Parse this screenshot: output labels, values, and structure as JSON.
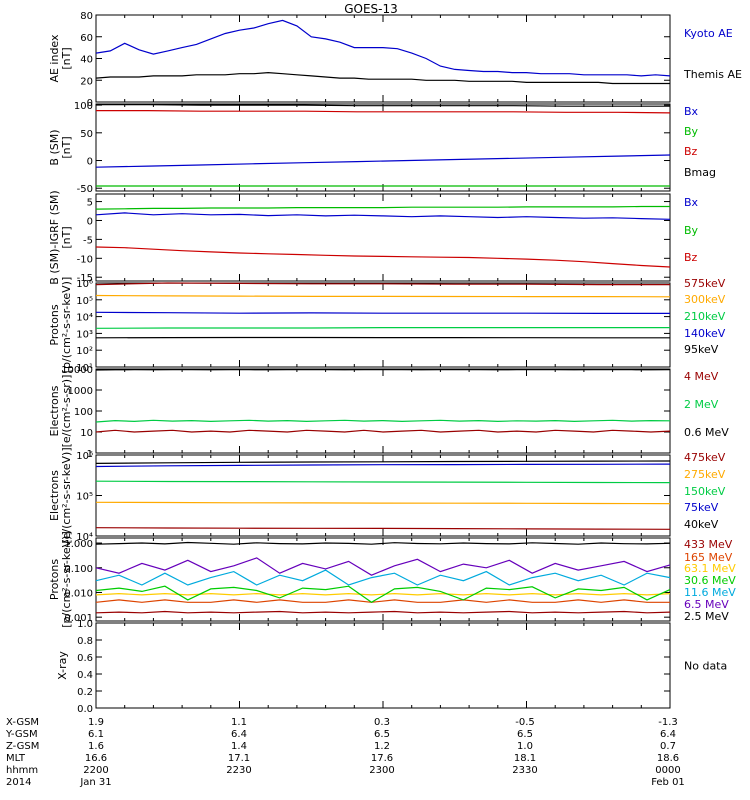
{
  "title": "GOES-13",
  "chart_data": [
    {
      "type": "line",
      "ylabel": [
        "AE index",
        "[nT]"
      ],
      "ylim": [
        0,
        80
      ],
      "ticks": [
        0,
        20,
        40,
        60,
        80
      ],
      "tick_labels": [
        "0",
        "20",
        "40",
        "60",
        "80"
      ],
      "series": [
        {
          "name": "Kyoto AE",
          "color": "#0000cc",
          "values": [
            45,
            47,
            54,
            48,
            44,
            47,
            50,
            53,
            58,
            63,
            66,
            68,
            72,
            75,
            70,
            60,
            58,
            55,
            50,
            50,
            50,
            49,
            45,
            40,
            33,
            30,
            29,
            28,
            28,
            27,
            27,
            26,
            26,
            26,
            25,
            25,
            25,
            25,
            24,
            25,
            24
          ]
        },
        {
          "name": "Themis AE",
          "color": "#000000",
          "values": [
            22,
            23,
            23,
            23,
            24,
            24,
            24,
            25,
            25,
            25,
            26,
            26,
            27,
            26,
            25,
            24,
            23,
            22,
            22,
            21,
            21,
            21,
            21,
            20,
            20,
            20,
            19,
            19,
            19,
            19,
            18,
            18,
            18,
            18,
            18,
            18,
            17,
            17,
            17,
            17,
            17
          ]
        }
      ]
    },
    {
      "type": "line",
      "ylabel": [
        "B (SM)",
        "[nT]"
      ],
      "ylim": [
        -55,
        102
      ],
      "ticks": [
        -50,
        0,
        50,
        100
      ],
      "tick_labels": [
        "-50",
        "0",
        "50",
        "100"
      ],
      "series": [
        {
          "name": "Bx",
          "color": "#0000cc",
          "values": [
            -12,
            -10,
            -8,
            -6,
            -4,
            -2,
            0,
            2,
            4,
            6,
            8,
            10
          ]
        },
        {
          "name": "By",
          "color": "#00bb00",
          "values": [
            -46,
            -46,
            -46,
            -46,
            -46,
            -46,
            -46,
            -46,
            -46,
            -46,
            -46,
            -46
          ]
        },
        {
          "name": "Bz",
          "color": "#cc0000",
          "values": [
            90,
            90,
            89,
            89,
            89,
            88,
            88,
            88,
            88,
            87,
            87,
            86
          ]
        },
        {
          "name": "Bmag",
          "color": "#000000",
          "values": [
            101,
            101,
            100,
            100,
            100,
            99,
            99,
            99,
            99,
            98,
            98,
            98
          ]
        }
      ]
    },
    {
      "type": "line",
      "ylabel": [
        "B (SM)-IGRF (SM)",
        "[nT]"
      ],
      "ylim": [
        -16,
        7
      ],
      "ticks": [
        -15,
        -10,
        -5,
        0,
        5
      ],
      "tick_labels": [
        "-15",
        "-10",
        "-5",
        "0",
        "5"
      ],
      "series": [
        {
          "name": "Bx",
          "color": "#0000cc",
          "values": [
            1.5,
            2,
            1.5,
            1.8,
            1.5,
            1.6,
            1.3,
            1.5,
            1.2,
            1.4,
            1.2,
            1.0,
            1.2,
            1.0,
            0.8,
            1.0,
            0.8,
            0.6,
            0.7,
            0.5,
            0.3
          ]
        },
        {
          "name": "By",
          "color": "#00bb00",
          "values": [
            3.0,
            3.1,
            3.2,
            3.2,
            3.3,
            3.3,
            3.3,
            3.4,
            3.4,
            3.4,
            3.4,
            3.5,
            3.5,
            3.5,
            3.5,
            3.6,
            3.6,
            3.6,
            3.6,
            3.7,
            3.7
          ]
        },
        {
          "name": "Bz",
          "color": "#cc0000",
          "values": [
            -7.0,
            -7.2,
            -7.6,
            -8.0,
            -8.3,
            -8.6,
            -8.8,
            -9.0,
            -9.2,
            -9.4,
            -9.5,
            -9.6,
            -9.7,
            -9.8,
            -10.0,
            -10.2,
            -10.5,
            -10.9,
            -11.4,
            -11.9,
            -12.3
          ]
        }
      ]
    },
    {
      "type": "line",
      "log": true,
      "ylabel": [
        "Protons",
        "[p/(cm²-s-sr-keV)]"
      ],
      "ylim": [
        10,
        1000000
      ],
      "ticks": [
        10,
        100,
        1000,
        10000,
        100000,
        1000000
      ],
      "tick_labels": [
        "10¹",
        "10²",
        "10³",
        "10⁴",
        "10⁵",
        "10⁶"
      ],
      "series": [
        {
          "name": "575keV",
          "color": "#990000",
          "values": [
            800000,
            1000000,
            950000,
            900000,
            900000,
            850000,
            850000,
            800000,
            800000
          ]
        },
        {
          "name": "300keV",
          "color": "#ffaa00",
          "values": [
            180000,
            170000,
            165000,
            160000,
            160000,
            158000,
            155000,
            155000,
            150000
          ]
        },
        {
          "name": "210keV",
          "color": "#00cc44",
          "values": [
            2000,
            2100,
            2100,
            2100,
            2200,
            2200,
            2200,
            2200,
            2200
          ]
        },
        {
          "name": "140keV",
          "color": "#0000cc",
          "values": [
            18000,
            17000,
            16000,
            16500,
            16000,
            16000,
            16000,
            15500,
            15500
          ]
        },
        {
          "name": "95keV",
          "color": "#000000",
          "values": [
            550,
            560,
            570,
            570,
            560,
            560,
            555,
            550,
            550
          ]
        }
      ]
    },
    {
      "type": "line",
      "log": true,
      "ylabel": [
        "Electrons",
        "[e/(cm²-s-sr)]"
      ],
      "ylim": [
        1,
        10000
      ],
      "ticks": [
        1,
        10,
        100,
        1000,
        10000
      ],
      "tick_labels": [
        "1",
        "10",
        "100",
        "1000",
        "10000"
      ],
      "series": [
        {
          "name": "4 MeV",
          "color": "#990000",
          "values": [
            10,
            12,
            10,
            11,
            12,
            10,
            11,
            10,
            12,
            11,
            10,
            12,
            11,
            10,
            12,
            10,
            11,
            12,
            10,
            11,
            12,
            10,
            11,
            10,
            12,
            11,
            10,
            12,
            11,
            10,
            11
          ]
        },
        {
          "name": "2 MeV",
          "color": "#00cc44",
          "values": [
            30,
            35,
            32,
            36,
            33,
            35,
            32,
            34,
            36,
            33,
            35,
            32,
            34,
            36,
            33,
            35,
            32,
            34,
            36,
            33,
            35,
            32,
            34,
            33,
            35,
            32,
            34,
            36,
            33,
            35,
            34
          ]
        },
        {
          "name": "0.6 MeV",
          "color": "#000000",
          "values": [
            9000,
            9200,
            9300,
            9200,
            9400,
            9300,
            9200,
            9400,
            9300,
            9200,
            9300,
            9400,
            9300,
            9200,
            9300,
            9400,
            9300,
            9200,
            9300,
            9400,
            9300,
            9200,
            9300,
            9400,
            9300,
            9200,
            9300,
            9400,
            9300,
            9200,
            9300
          ]
        }
      ]
    },
    {
      "type": "line",
      "log": true,
      "ylabel": [
        "Electrons",
        "[e/(cm²-s-sr-keV)]"
      ],
      "ylim": [
        10000,
        1000000
      ],
      "ticks": [
        10000,
        100000,
        1000000
      ],
      "tick_labels": [
        "10⁴",
        "10⁵",
        "10⁶"
      ],
      "series": [
        {
          "name": "475keV",
          "color": "#990000",
          "values": [
            16000,
            15800,
            15600,
            15500,
            15400,
            15200,
            15000,
            14800,
            14600
          ]
        },
        {
          "name": "275keV",
          "color": "#ffaa00",
          "values": [
            68000,
            67000,
            66000,
            65500,
            65000,
            64500,
            64000,
            63500,
            63000
          ]
        },
        {
          "name": "150keV",
          "color": "#00cc44",
          "values": [
            225000,
            222000,
            220000,
            218000,
            216000,
            214000,
            212000,
            210000,
            208000
          ]
        },
        {
          "name": "75keV",
          "color": "#0000cc",
          "values": [
            520000,
            540000,
            555000,
            565000,
            575000,
            580000,
            585000,
            590000,
            595000
          ]
        },
        {
          "name": "40keV",
          "color": "#000000",
          "values": [
            620000,
            640000,
            660000,
            670000,
            680000,
            690000,
            700000,
            705000,
            710000
          ]
        }
      ]
    },
    {
      "type": "line",
      "log": true,
      "ylabel": [
        "Protons",
        "[p/(cm²-s-sr-keV)]"
      ],
      "ylim": [
        0.0007,
        1.6
      ],
      "ticks": [
        0.001,
        0.01,
        0.1,
        1
      ],
      "tick_labels": [
        "0.001",
        "0.010",
        "0.100",
        "1.000"
      ],
      "series": [
        {
          "name": "433 MeV",
          "color": "#990000",
          "values": [
            0.0015,
            0.0016,
            0.0015,
            0.0017,
            0.0015,
            0.0016,
            0.0015,
            0.0016,
            0.0017,
            0.0015,
            0.0016,
            0.0015,
            0.0016,
            0.0017,
            0.0015,
            0.0016,
            0.0015,
            0.0016,
            0.0017,
            0.0015,
            0.0016,
            0.0015,
            0.0016,
            0.0017,
            0.0015,
            0.0016
          ]
        },
        {
          "name": "165 MeV",
          "color": "#dd4400",
          "values": [
            0.004,
            0.005,
            0.004,
            0.005,
            0.004,
            0.004,
            0.005,
            0.004,
            0.005,
            0.004,
            0.004,
            0.005,
            0.004,
            0.005,
            0.004,
            0.004,
            0.005,
            0.004,
            0.005,
            0.004,
            0.004,
            0.005,
            0.004,
            0.005,
            0.004,
            0.004
          ]
        },
        {
          "name": "63.1 MeV",
          "color": "#ffcc00",
          "values": [
            0.008,
            0.009,
            0.008,
            0.009,
            0.008,
            0.009,
            0.008,
            0.009,
            0.008,
            0.009,
            0.008,
            0.009,
            0.008,
            0.009,
            0.008,
            0.009,
            0.008,
            0.009,
            0.008,
            0.009,
            0.008,
            0.009,
            0.008,
            0.009,
            0.008,
            0.009
          ]
        },
        {
          "name": "30.6 MeV",
          "color": "#00cc00",
          "values": [
            0.012,
            0.015,
            0.011,
            0.018,
            0.005,
            0.014,
            0.016,
            0.012,
            0.006,
            0.015,
            0.013,
            0.018,
            0.004,
            0.014,
            0.016,
            0.011,
            0.005,
            0.015,
            0.013,
            0.017,
            0.006,
            0.014,
            0.012,
            0.016,
            0.005,
            0.013
          ]
        },
        {
          "name": "11.6 MeV",
          "color": "#00aadd",
          "values": [
            0.03,
            0.05,
            0.02,
            0.06,
            0.02,
            0.04,
            0.07,
            0.02,
            0.05,
            0.03,
            0.08,
            0.02,
            0.04,
            0.06,
            0.02,
            0.05,
            0.03,
            0.07,
            0.02,
            0.04,
            0.06,
            0.03,
            0.05,
            0.02,
            0.06,
            0.04
          ]
        },
        {
          "name": "6.5 MeV",
          "color": "#6600bb",
          "values": [
            0.1,
            0.06,
            0.15,
            0.08,
            0.2,
            0.07,
            0.12,
            0.25,
            0.06,
            0.15,
            0.09,
            0.18,
            0.05,
            0.12,
            0.22,
            0.07,
            0.14,
            0.1,
            0.2,
            0.06,
            0.15,
            0.08,
            0.12,
            0.18,
            0.07,
            0.13
          ]
        },
        {
          "name": "2.5 MeV",
          "color": "#000000",
          "values": [
            0.9,
            0.95,
            1.0,
            0.92,
            1.05,
            0.98,
            0.9,
            1.02,
            0.95,
            0.92,
            1.0,
            0.97,
            0.9,
            1.03,
            0.96,
            0.93,
            1.0,
            0.95,
            0.92,
            1.02,
            0.96,
            0.9,
            1.0,
            0.94,
            0.92,
            0.98
          ]
        }
      ]
    },
    {
      "type": "line",
      "ylabel": [
        "X-ray"
      ],
      "ylim": [
        0,
        1
      ],
      "ticks": [
        0,
        0.2,
        0.4,
        0.6,
        0.8,
        1.0
      ],
      "tick_labels": [
        "0.0",
        "0.2",
        "0.4",
        "0.6",
        "0.8",
        "1.0"
      ],
      "note": "No data",
      "series": []
    }
  ],
  "footer": {
    "row_labels": [
      "X-GSM",
      "Y-GSM",
      "Z-GSM",
      "MLT",
      "hhmm",
      "2014"
    ],
    "columns": [
      [
        "1.9",
        "6.1",
        "1.6",
        "16.6",
        "2200",
        "Jan 31"
      ],
      [
        "1.1",
        "6.4",
        "1.4",
        "17.1",
        "2230",
        ""
      ],
      [
        "0.3",
        "6.5",
        "1.2",
        "17.6",
        "2300",
        ""
      ],
      [
        "-0.5",
        "6.5",
        "1.0",
        "18.1",
        "2330",
        ""
      ],
      [
        "-1.3",
        "6.4",
        "0.7",
        "18.6",
        "0000",
        "Feb 01"
      ]
    ]
  }
}
